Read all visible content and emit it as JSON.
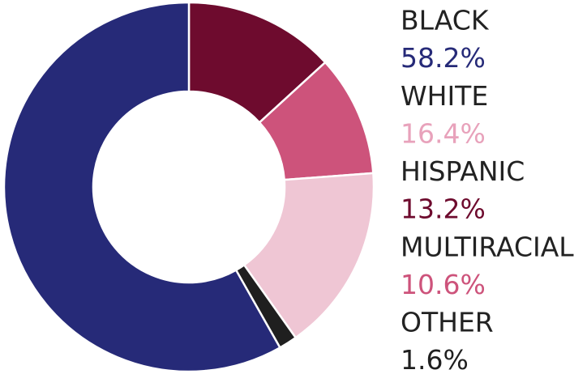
{
  "chart_data": {
    "type": "pie",
    "categories": [
      "BLACK",
      "WHITE",
      "HISPANIC",
      "MULTIRACIAL",
      "OTHER"
    ],
    "values": [
      58.2,
      16.4,
      13.2,
      10.6,
      1.6
    ],
    "value_labels": [
      "58.2%",
      "16.4%",
      "13.2%",
      "10.6%",
      "1.6%"
    ],
    "colors": [
      "#262a78",
      "#efc6d4",
      "#6e0b2e",
      "#cd537b",
      "#1f1f1f"
    ],
    "label_colors": [
      "#262a78",
      "#e8a2bb",
      "#6e0b2e",
      "#cd537b",
      "#1f1f1f"
    ]
  }
}
